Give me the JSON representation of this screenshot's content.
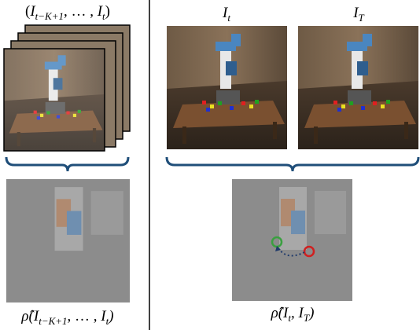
{
  "figure": {
    "frames_label": [
      "(",
      "I",
      "t−K+1",
      ", … , ",
      "I",
      "t",
      ")"
    ],
    "current_label": [
      "I",
      "t"
    ],
    "target_label": [
      "I",
      "T"
    ],
    "left_output_label": [
      "ρ̂(",
      "I",
      "t−K+1",
      ", … , ",
      "I",
      "t",
      ")"
    ],
    "right_output_label": [
      "ρ̂(",
      "I",
      "t",
      ", ",
      "I",
      "T",
      ")"
    ]
  }
}
